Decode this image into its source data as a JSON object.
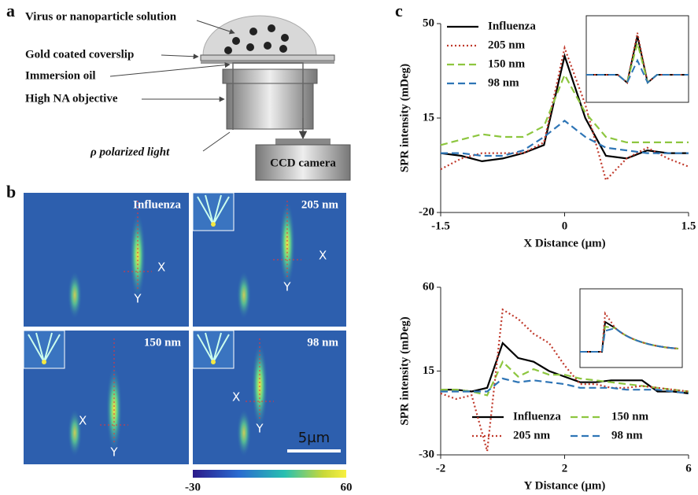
{
  "panel_a": {
    "label": "a",
    "annotations": [
      "Virus or nanoparticle solution",
      "Gold coated coverslip",
      "Immersion oil",
      "High NA objective",
      "ρ polarized light",
      "CCD camera"
    ]
  },
  "panel_b": {
    "label": "b",
    "tiles": [
      {
        "title": "Influenza"
      },
      {
        "title": "205 nm"
      },
      {
        "title": "150 nm"
      },
      {
        "title": "98 nm"
      }
    ],
    "x_marker": "X",
    "y_marker": "Y",
    "scale_bar": "5μm",
    "colorbar": {
      "min": -30,
      "max": 60
    }
  },
  "panel_c_label": "c",
  "chart_data": [
    {
      "type": "line",
      "ylabel": "SPR intensity (mDeg)",
      "xlabel": "X Distance (μm)",
      "x": [
        -1.5,
        -1.25,
        -1,
        -0.75,
        -0.5,
        -0.25,
        0,
        0.25,
        0.5,
        0.75,
        1,
        1.25,
        1.5
      ],
      "xlim": [
        -1.5,
        1.5
      ],
      "xticks": [
        -1.5,
        0,
        1.5
      ],
      "ylim": [
        -20,
        50
      ],
      "yticks": [
        -20,
        15,
        50
      ],
      "legend": "upper left",
      "series": [
        {
          "name": "Influenza",
          "color": "#000000",
          "style": "solid",
          "values": [
            2,
            1,
            -1,
            0,
            2,
            5,
            38,
            15,
            1,
            0,
            3,
            2,
            2
          ]
        },
        {
          "name": "205 nm",
          "color": "#c0392b",
          "style": "dotted",
          "values": [
            -4,
            0,
            2,
            2,
            2,
            6,
            41,
            20,
            -8,
            0,
            4,
            0,
            -3
          ]
        },
        {
          "name": "150 nm",
          "color": "#8dc63f",
          "style": "dashed",
          "values": [
            5,
            7,
            9,
            8,
            8,
            12,
            31,
            17,
            8,
            6,
            6,
            6,
            6
          ]
        },
        {
          "name": "98 nm",
          "color": "#2e75b6",
          "style": "dashed",
          "values": [
            2,
            2,
            1,
            1,
            3,
            8,
            14,
            8,
            4,
            3,
            2,
            2,
            2
          ]
        }
      ]
    },
    {
      "type": "line",
      "ylabel": "SPR intensity (mDeg)",
      "xlabel": "Y Distance (μm)",
      "x": [
        -2,
        -1.5,
        -1,
        -0.5,
        0,
        0.5,
        1,
        1.5,
        2,
        2.5,
        3,
        3.5,
        4,
        4.5,
        5,
        5.5,
        6
      ],
      "xlim": [
        -2,
        6
      ],
      "xticks": [
        -2,
        2,
        6
      ],
      "ylim": [
        -30,
        60
      ],
      "yticks": [
        -30,
        15,
        60
      ],
      "legend": "lower center",
      "series": [
        {
          "name": "Influenza",
          "color": "#000000",
          "style": "solid",
          "values": [
            5,
            5,
            4,
            6,
            30,
            22,
            20,
            15,
            12,
            9,
            9,
            10,
            10,
            10,
            4,
            4,
            3
          ]
        },
        {
          "name": "150 nm",
          "color": "#8dc63f",
          "style": "dashed",
          "values": [
            5,
            5,
            4,
            2,
            20,
            12,
            16,
            13,
            13,
            11,
            10,
            9,
            8,
            7,
            6,
            5,
            4
          ]
        },
        {
          "name": "205 nm",
          "color": "#c0392b",
          "style": "dotted",
          "values": [
            3,
            0,
            2,
            -28,
            48,
            43,
            35,
            30,
            18,
            8,
            8,
            6,
            6,
            7,
            6,
            5,
            4
          ]
        },
        {
          "name": "98 nm",
          "color": "#2e75b6",
          "style": "dashed",
          "values": [
            4,
            4,
            4,
            4,
            11,
            9,
            10,
            9,
            8,
            6,
            6,
            6,
            5,
            5,
            5,
            4,
            3
          ]
        }
      ]
    }
  ]
}
